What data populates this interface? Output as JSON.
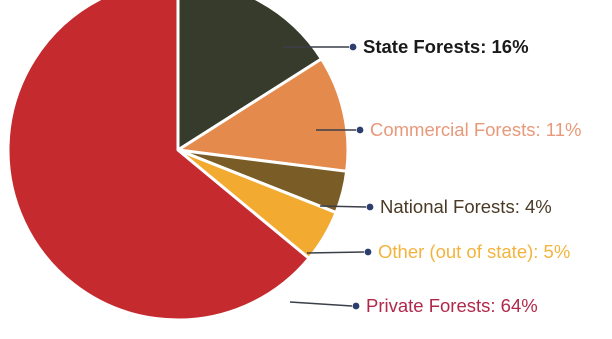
{
  "chart_data": {
    "type": "pie",
    "title": "",
    "legend": "callouts-right",
    "slices": [
      {
        "label": "State Forests: 16%",
        "value": 16,
        "color": "#363b2c",
        "label_color": "#1a1a1a"
      },
      {
        "label": "Commercial Forests: 11%",
        "value": 11,
        "color": "#e38a4c",
        "label_color": "#e8997a"
      },
      {
        "label": "National Forests: 4%",
        "value": 4,
        "color": "#7a5d26",
        "label_color": "#4a3a26"
      },
      {
        "label": "Other (out of state): 5%",
        "value": 5,
        "color": "#f2aa30",
        "label_color": "#f3b43e"
      },
      {
        "label": "Private Forests: 64%",
        "value": 64,
        "color": "#c42a2e",
        "label_color": "#b0294b"
      }
    ],
    "start_angle_deg": 0,
    "direction": "clockwise"
  }
}
